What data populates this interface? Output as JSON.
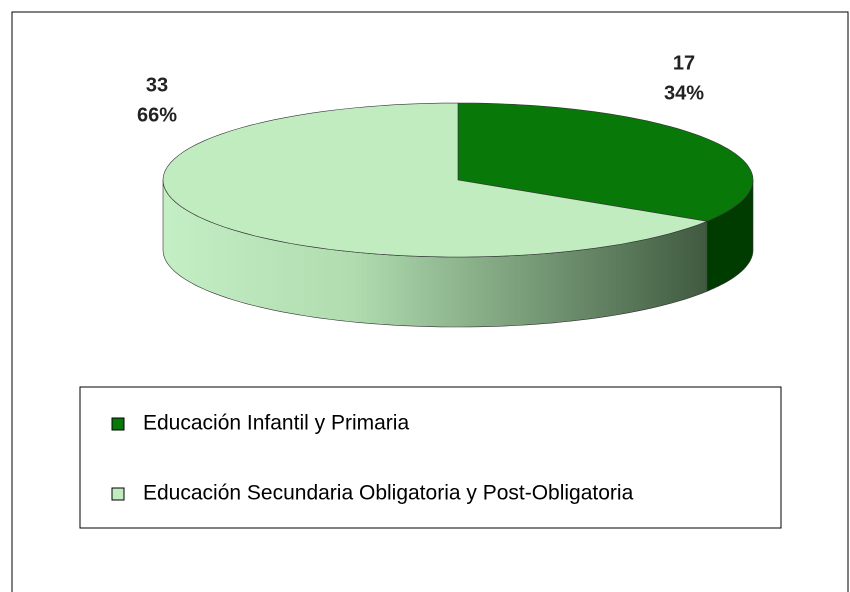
{
  "chart_data": {
    "type": "pie",
    "categories": [
      "Educación Infantil y Primaria",
      "Educación Secundaria Obligatoria y Post-Obligatoria"
    ],
    "values": [
      17,
      33
    ],
    "percent_labels": [
      "34%",
      "66%"
    ],
    "colors": [
      "#087808",
      "#c0ecc0"
    ],
    "legend": "bottom"
  }
}
